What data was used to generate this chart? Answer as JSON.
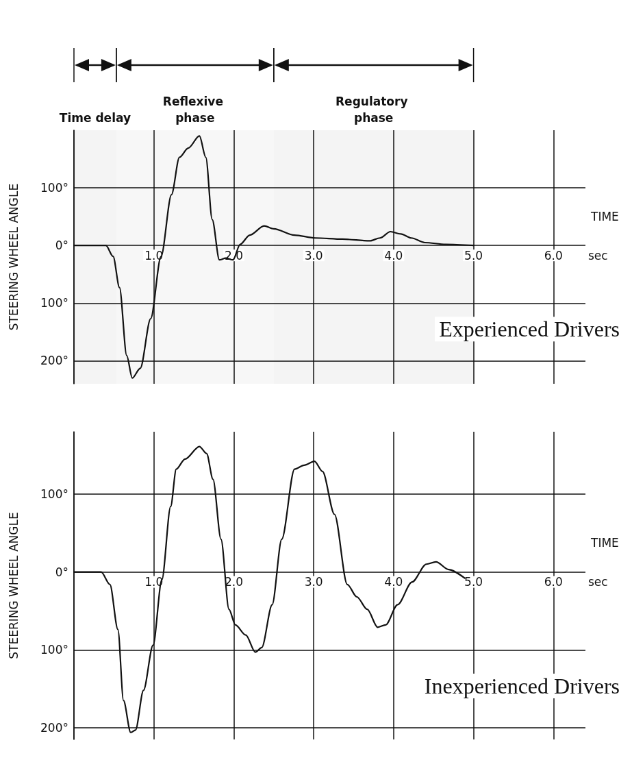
{
  "chart_data": [
    {
      "type": "line",
      "title": "Experienced Drivers",
      "xlabel": "TIME",
      "ylabel": "STEERING WHEEL ANGLE",
      "annotations": [
        "sec"
      ],
      "x": [
        0,
        0.4,
        0.49,
        0.57,
        0.66,
        0.73,
        0.83,
        0.96,
        1.09,
        1.22,
        1.32,
        1.43,
        1.57,
        1.65,
        1.73,
        1.82,
        1.9,
        1.99,
        2.08,
        2.2,
        2.38,
        2.5,
        2.76,
        3.02,
        3.36,
        3.7,
        3.83,
        3.96,
        4.09,
        4.22,
        4.39,
        4.65,
        5.0
      ],
      "series": [
        {
          "color": "#111111",
          "values": [
            0,
            0,
            -19,
            -73,
            -191,
            -230,
            -213,
            -127,
            -19,
            88,
            153,
            169,
            190,
            153,
            45,
            -25,
            -22,
            -25,
            2,
            18,
            34,
            29,
            18,
            13,
            11,
            8,
            13,
            24,
            20,
            13,
            5,
            2,
            0
          ]
        }
      ],
      "xlim": [
        0,
        6.4
      ],
      "xticks": [
        {
          "value": 0,
          "label": null
        },
        {
          "value": 1,
          "label": "1.0"
        },
        {
          "value": 2,
          "label": "2.0"
        },
        {
          "value": 3,
          "label": "3.0"
        },
        {
          "value": 4,
          "label": "4.0"
        },
        {
          "value": 5,
          "label": "5.0"
        },
        {
          "value": 6,
          "label": "6.0"
        }
      ],
      "ylim": [
        -240,
        200
      ],
      "yticks": [
        {
          "value": -200,
          "label": "200°"
        },
        {
          "value": -100,
          "label": "100°"
        },
        {
          "value": 0,
          "label": "0°"
        },
        {
          "value": 100,
          "label": "100°"
        }
      ],
      "bands": [
        {
          "axis": "x",
          "from": 0,
          "to": 0.53,
          "label": "Time delay",
          "color": "#f4f4f4"
        },
        {
          "axis": "x",
          "from": 0.53,
          "to": 2.5,
          "label": "Reflexive phase",
          "color": "#f7f7f7"
        },
        {
          "axis": "x",
          "from": 2.5,
          "to": 5.0,
          "label": "Regulatory phase",
          "color": "#f4f4f4"
        }
      ],
      "grid": true,
      "marker": "none",
      "line_style": "solid"
    },
    {
      "type": "line",
      "title": "Inexperienced Drivers",
      "xlabel": "TIME",
      "ylabel": "STEERING WHEEL ANGLE",
      "annotations": [
        "sec"
      ],
      "x": [
        0,
        0.34,
        0.45,
        0.55,
        0.62,
        0.71,
        0.77,
        0.87,
        0.99,
        1.1,
        1.21,
        1.28,
        1.39,
        1.57,
        1.66,
        1.74,
        1.84,
        1.94,
        2.02,
        2.15,
        2.27,
        2.35,
        2.48,
        2.6,
        2.76,
        2.88,
        3.01,
        3.11,
        3.26,
        3.42,
        3.54,
        3.67,
        3.8,
        3.9,
        4.05,
        4.23,
        4.41,
        4.53,
        4.69,
        4.89
      ],
      "series": [
        {
          "color": "#111111",
          "values": [
            0,
            0,
            -16,
            -74,
            -165,
            -206,
            -203,
            -152,
            -94,
            -10,
            84,
            132,
            145,
            161,
            152,
            119,
            42,
            -48,
            -68,
            -81,
            -103,
            -97,
            -42,
            42,
            132,
            137,
            142,
            129,
            74,
            -16,
            -32,
            -48,
            -71,
            -68,
            -42,
            -13,
            10,
            13,
            3,
            -8
          ]
        }
      ],
      "xlim": [
        0,
        6.4
      ],
      "xticks": [
        {
          "value": 0,
          "label": null
        },
        {
          "value": 1,
          "label": "1.0"
        },
        {
          "value": 2,
          "label": "2.0"
        },
        {
          "value": 3,
          "label": "3.0"
        },
        {
          "value": 4,
          "label": "4.0"
        },
        {
          "value": 5,
          "label": "5.0"
        },
        {
          "value": 6,
          "label": "6.0"
        }
      ],
      "ylim": [
        -215,
        180
      ],
      "yticks": [
        {
          "value": -200,
          "label": "200°"
        },
        {
          "value": -100,
          "label": "100°"
        },
        {
          "value": 0,
          "label": "0°"
        },
        {
          "value": 100,
          "label": "100°"
        }
      ],
      "grid": true,
      "marker": "none",
      "line_style": "solid"
    }
  ]
}
